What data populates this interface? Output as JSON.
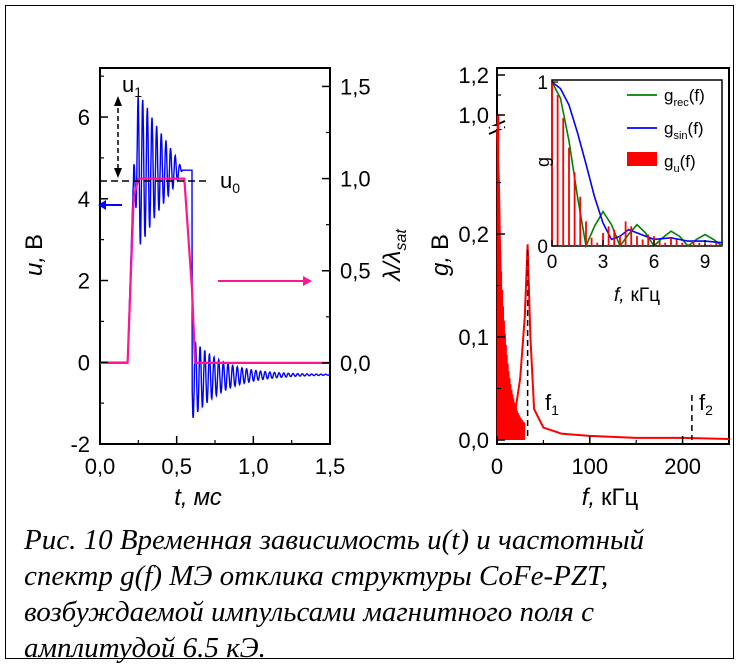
{
  "figure": {
    "caption": "Рис. 10 Временная зависимость u(t) и частотный спектр g(f) МЭ отклика структуры CoFe-PZT, возбуждаемой импульсами магнитного поля с амплитудой 6.5 кЭ."
  },
  "chart_data": [
    {
      "type": "line",
      "xlabel_var": "t,",
      "xlabel_unit": "мс",
      "ylabel_left_var": "u,",
      "ylabel_left_unit": "В",
      "ylabel_right": "λ/λsat",
      "xlim": [
        0.0,
        1.5
      ],
      "ylim_left": [
        -2,
        7.2
      ],
      "ylim_right": [
        -0.44,
        1.6
      ],
      "xticks": [
        "0,0",
        "0,5",
        "1,0",
        "1,5"
      ],
      "yticks_left": [
        "-2",
        "0",
        "2",
        "4",
        "6"
      ],
      "yticks_right": [
        "0,0",
        "0,5",
        "1,0",
        "1,5"
      ],
      "annotations": [
        "u1",
        "u0"
      ],
      "series": [
        {
          "axis": "left",
          "color": "#0000ff",
          "x": [
            0.0,
            0.18,
            0.2,
            0.25,
            0.3,
            0.35,
            0.4,
            0.45,
            0.5,
            0.55,
            0.6,
            0.65,
            0.7,
            0.8,
            0.9,
            1.0,
            1.2,
            1.5
          ],
          "y": [
            0.0,
            0.0,
            3.6,
            6.6,
            6.3,
            5.9,
            5.6,
            5.3,
            5.0,
            4.6,
            -1.0,
            -1.4,
            -1.1,
            -0.8,
            -0.6,
            -0.5,
            -0.4,
            -0.3
          ]
        },
        {
          "axis": "right",
          "color": "#ff1493",
          "x": [
            0.0,
            0.18,
            0.22,
            0.25,
            0.55,
            0.6,
            0.62,
            1.5
          ],
          "y": [
            0.0,
            0.0,
            0.9,
            1.0,
            1.0,
            0.4,
            0.0,
            0.0
          ]
        }
      ]
    },
    {
      "type": "line",
      "xlabel_var": "f,",
      "xlabel_unit": "кГц",
      "ylabel_var": "g,",
      "ylabel_unit": "В",
      "xlim": [
        0,
        250
      ],
      "ylim": [
        -0.01,
        1.25
      ],
      "xticks": [
        "0",
        "100",
        "200"
      ],
      "yticks": [
        "0,0",
        "0,1",
        "0,2",
        "1,0",
        "1,2"
      ],
      "annotations": [
        "f1",
        "f2"
      ],
      "f1_x": 33,
      "f2_x": 210,
      "series": [
        {
          "color": "#ff0000",
          "x": [
            0,
            2,
            5,
            10,
            15,
            20,
            25,
            30,
            33,
            36,
            40,
            50,
            70,
            100,
            150,
            200,
            250
          ],
          "y": [
            1.1,
            0.25,
            0.1,
            0.05,
            0.005,
            0.03,
            0.06,
            0.12,
            0.19,
            0.1,
            0.03,
            0.012,
            0.006,
            0.004,
            0.002,
            0.002,
            0.001
          ]
        }
      ],
      "inset": {
        "xlabel_var": "f,",
        "xlabel_unit": "кГц",
        "ylabel": "g",
        "xlim": [
          0,
          10
        ],
        "ylim": [
          0,
          1
        ],
        "xticks": [
          "0",
          "3",
          "6",
          "9"
        ],
        "yticks": [
          "0",
          "1"
        ],
        "legend": [
          "g_rec(f)",
          "g_sin(f)",
          "g_u(f)"
        ],
        "legend_position": "top-right",
        "series": [
          {
            "name": "g_rec(f)",
            "color": "#008000",
            "x": [
              0,
              0.5,
              1,
              1.5,
              2,
              2.5,
              3,
              3.5,
              4,
              4.5,
              5,
              5.5,
              6,
              6.5,
              7,
              7.5,
              8,
              8.5,
              9,
              9.5,
              10
            ],
            "y": [
              1.0,
              0.9,
              0.64,
              0.3,
              0.0,
              0.12,
              0.21,
              0.13,
              0.0,
              0.07,
              0.13,
              0.08,
              0.0,
              0.05,
              0.09,
              0.06,
              0.0,
              0.04,
              0.07,
              0.04,
              0.0
            ]
          },
          {
            "name": "g_sin(f)",
            "color": "#0000ff",
            "x": [
              0,
              0.5,
              1,
              1.5,
              2,
              2.5,
              3,
              3.5,
              4,
              4.5,
              5,
              6,
              7,
              8,
              9,
              10
            ],
            "y": [
              1.0,
              0.96,
              0.86,
              0.69,
              0.5,
              0.3,
              0.14,
              0.04,
              0.06,
              0.1,
              0.08,
              0.04,
              0.05,
              0.03,
              0.03,
              0.02
            ]
          },
          {
            "name": "g_u(f)",
            "color": "#ff0000",
            "type": "bar",
            "x": [
              0.0,
              0.33,
              0.66,
              1.0,
              1.33,
              1.66,
              2.0,
              2.33,
              2.66,
              3.0,
              3.33,
              3.66,
              4.0,
              4.33,
              4.66,
              5.0,
              5.33,
              5.66,
              6.0,
              6.33,
              6.66,
              7.0,
              7.33,
              7.66,
              8.0,
              8.33,
              8.66,
              9.0,
              9.33,
              9.66
            ],
            "y": [
              1.0,
              0.92,
              0.78,
              0.6,
              0.45,
              0.3,
              0.15,
              0.05,
              0.02,
              0.08,
              0.12,
              0.1,
              0.06,
              0.15,
              0.12,
              0.06,
              0.04,
              0.07,
              0.06,
              0.03,
              0.02,
              0.05,
              0.04,
              0.02,
              0.01,
              0.03,
              0.02,
              0.01,
              0.01,
              0.02
            ]
          }
        ]
      }
    }
  ]
}
